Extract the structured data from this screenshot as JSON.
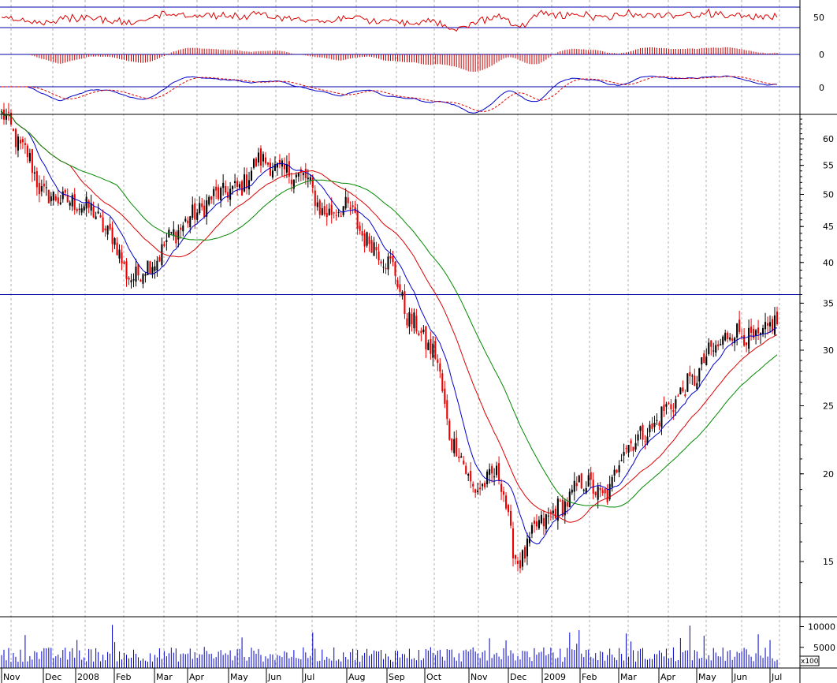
{
  "chart_data": {
    "type": "candlestick",
    "scale": "log",
    "months": [
      "Nov",
      "Dec",
      "2008",
      "Feb",
      "Mar",
      "Apr",
      "May",
      "Jun",
      "Jul",
      "Aug",
      "Sep",
      "Oct",
      "Nov",
      "Dec",
      "2009",
      "Feb",
      "Mar",
      "Apr",
      "May",
      "Jun",
      "Jul"
    ],
    "price_ticks": [
      60,
      55,
      50,
      45,
      40,
      35,
      30,
      25,
      20,
      15
    ],
    "volume_ticks": [
      10000,
      5000
    ],
    "volume_unit": "x100",
    "indicator1_tick": "50",
    "indicator2_tick": "0",
    "indicator3_tick": "0",
    "reference_line": 36,
    "price_anchors": [
      [
        "Nov",
        65
      ],
      [
        "Nov",
        58
      ],
      [
        "Nov",
        50
      ],
      [
        "Dec",
        49
      ],
      [
        "Dec",
        48
      ],
      [
        "2008",
        44
      ],
      [
        "2008",
        38
      ],
      [
        "Feb",
        40
      ],
      [
        "Feb",
        44
      ],
      [
        "Mar",
        47
      ],
      [
        "Apr",
        50
      ],
      [
        "May",
        51
      ],
      [
        "May",
        56
      ],
      [
        "Jun",
        54
      ],
      [
        "Jul",
        53
      ],
      [
        "Jul",
        47
      ],
      [
        "Aug",
        48
      ],
      [
        "Aug",
        43
      ],
      [
        "Sep",
        40
      ],
      [
        "Sep",
        33
      ],
      [
        "Oct",
        30
      ],
      [
        "Oct",
        22
      ],
      [
        "Oct",
        19
      ],
      [
        "Nov",
        20
      ],
      [
        "Nov",
        15
      ],
      [
        "Dec",
        17
      ],
      [
        "Dec",
        18
      ],
      [
        "2009",
        19.5
      ],
      [
        "2009",
        18.5
      ],
      [
        "Feb",
        22
      ],
      [
        "Mar",
        23
      ],
      [
        "Apr",
        25
      ],
      [
        "May",
        27
      ],
      [
        "May",
        30
      ],
      [
        "Jun",
        32
      ],
      [
        "Jun",
        31
      ],
      [
        "Jul",
        33
      ]
    ],
    "ma_colors": [
      "#0000cc",
      "#dd0000",
      "#008800"
    ],
    "candle_up_color": "#000000",
    "candle_down_color": "#ee0000",
    "grid": "vertical-dashed",
    "volume_color": "#0000cc"
  }
}
